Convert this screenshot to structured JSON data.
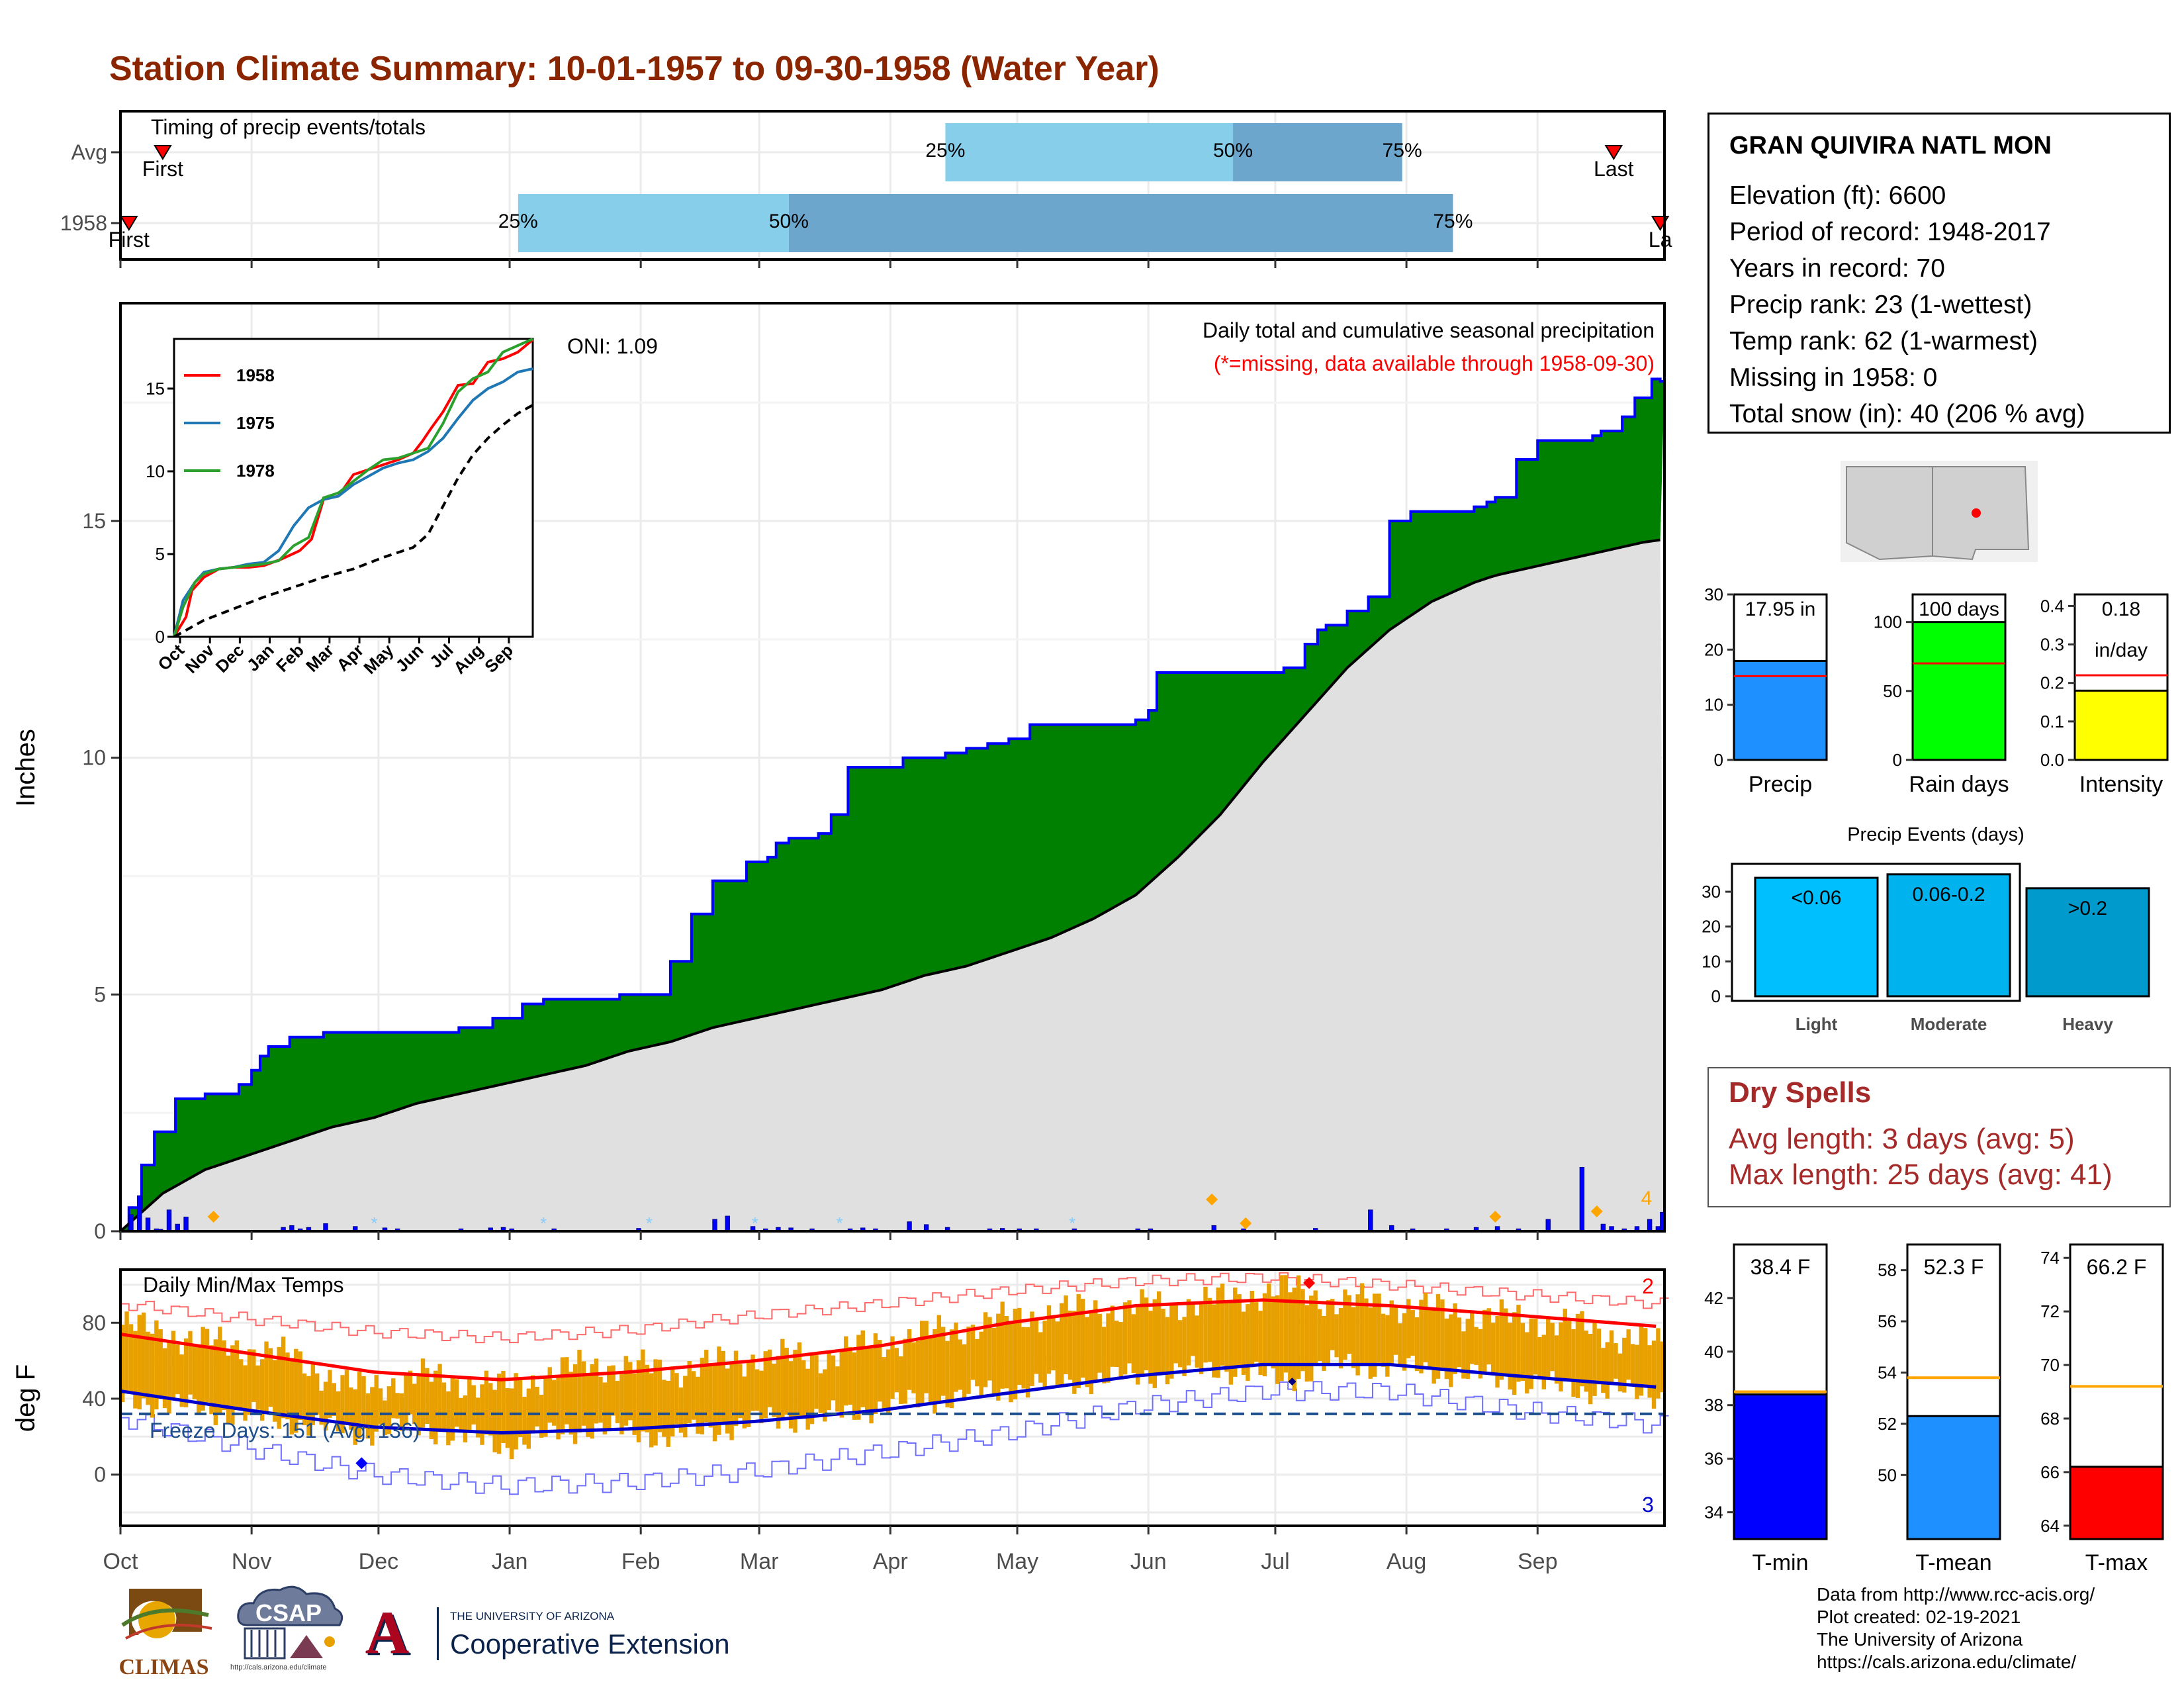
{
  "page": {
    "title": "Station Climate Summary: 10-01-1957 to 09-30-1958 (Water Year)"
  },
  "timing": {
    "title": "Timing of precip events/totals",
    "rows": [
      {
        "label": "Avg",
        "first_label": "First",
        "last_label": "Last"
      },
      {
        "label": "1958",
        "first_label": "First",
        "last_label": "La"
      }
    ],
    "colors": {
      "light": "#87ceeb",
      "dark": "#6ca6cd",
      "marker": "#ff0000"
    }
  },
  "precip_panel": {
    "subtitle": "Daily total and cumulative seasonal precipitation",
    "missing_note": "(*=missing, data available through 1958-09-30)",
    "oni": "ONI: 1.09",
    "ylabel": "Inches",
    "corner_count": "4",
    "colors": {
      "surplus": "#008000",
      "normal": "#e0e0e0",
      "daily": "#0000ff",
      "snow": "#87cefa",
      "marker": "#ffa500"
    }
  },
  "temp_panel": {
    "title": "Daily Min/Max Temps",
    "freeze_text": "Freeze Days: 151 (Avg: 136)",
    "ylabel": "deg F",
    "count_high": "2",
    "count_low": "3",
    "colors": {
      "bar": "#e8a000",
      "max": "#ff0000",
      "min": "#0000cd",
      "freeze": "#1f4e8c"
    }
  },
  "months": [
    "Oct",
    "Nov",
    "Dec",
    "Jan",
    "Feb",
    "Mar",
    "Apr",
    "May",
    "Jun",
    "Jul",
    "Aug",
    "Sep"
  ],
  "station": {
    "name": "GRAN QUIVIRA NATL MON",
    "lines": [
      "Elevation (ft): 6600",
      "Period of record: 1948-2017",
      "Years in record: 70",
      "Precip rank: 23 (1-wettest)",
      "Temp rank: 62 (1-warmest)",
      "Missing in 1958: 0",
      "Total snow (in): 40 (206 % avg)"
    ]
  },
  "summary_bars": [
    {
      "label": "Precip",
      "value_text": "17.95 in",
      "value": 17.95,
      "avg": 15.2,
      "ymax": 30,
      "ticks": [
        0,
        10,
        20,
        30
      ],
      "color": "#1e90ff"
    },
    {
      "label": "Rain days",
      "value_text": "100 days",
      "value": 100,
      "avg": 70,
      "ymax": 120,
      "ticks": [
        0,
        50,
        100
      ],
      "color": "#00ff00"
    },
    {
      "label": "Intensity",
      "value_text": "0.18",
      "value_text2": "in/day",
      "value": 0.18,
      "avg": 0.22,
      "ymax": 0.43,
      "ticks": [
        0.0,
        0.1,
        0.2,
        0.3,
        0.4
      ],
      "color": "#ffff00"
    }
  ],
  "precip_events": {
    "title": "Precip Events (days)",
    "categories": [
      "Light",
      "Moderate",
      "Heavy"
    ],
    "bar_labels": [
      "<0.06",
      "0.06-0.2",
      ">0.2"
    ],
    "values": [
      34,
      35,
      31
    ],
    "ticks": [
      0,
      10,
      20,
      30
    ],
    "colors": [
      "#00bfff",
      "#00b2ee",
      "#009acd"
    ]
  },
  "dry_spells": {
    "title": "Dry Spells",
    "lines": [
      "Avg length: 3 days (avg: 5)",
      "Max length: 25 days (avg: 41)"
    ]
  },
  "temp_bars": [
    {
      "label": "T-min",
      "value_text": "38.4 F",
      "value": 38.4,
      "avg": 38.5,
      "ymin": 33,
      "ymax": 44,
      "ticks": [
        34,
        36,
        38,
        40,
        42
      ],
      "color": "#0000ff"
    },
    {
      "label": "T-mean",
      "value_text": "52.3 F",
      "value": 52.3,
      "avg": 53.8,
      "ymin": 47.5,
      "ymax": 59,
      "ticks": [
        50,
        52,
        54,
        56,
        58
      ],
      "color": "#1e90ff"
    },
    {
      "label": "T-max",
      "value_text": "66.2 F",
      "value": 66.2,
      "avg": 69.2,
      "ymin": 63.5,
      "ymax": 74.5,
      "ticks": [
        64,
        66,
        68,
        70,
        72,
        74
      ],
      "color": "#ff0000"
    }
  ],
  "credits": [
    "Data from http://www.rcc-acis.org/",
    "Plot created: 02-19-2021",
    "The University of Arizona",
    "https://cals.arizona.edu/climate/"
  ],
  "logos": {
    "climas": "CLIMAS",
    "csap": "CSAP",
    "csap_url": "http://cals.arizona.edu/climate",
    "ua_mark": "A",
    "ua_small": "THE UNIVERSITY OF ARIZONA",
    "ua_large": "Cooperative Extension"
  },
  "chart_data": [
    {
      "type": "bar",
      "name": "timing",
      "categories": [
        "Avg",
        "1958"
      ],
      "series": [
        {
          "row": "Avg",
          "first": "Oct 11",
          "p25": "Apr 14",
          "p50": "Jun 21",
          "p75": "Jul 31",
          "last": "Sep 19"
        },
        {
          "row": "1958",
          "first": "Oct 3",
          "p25": "Jan 3",
          "p50": "Mar 8",
          "p75": "Aug 12",
          "last": "Sep 30"
        }
      ]
    },
    {
      "type": "area",
      "name": "cumulative precipitation",
      "title": "Daily total and cumulative seasonal precipitation",
      "ylabel": "Inches",
      "x_unit": "day of water year (0 = Oct 1)",
      "ylim": [
        0,
        19.6
      ],
      "yticks": [
        0,
        5,
        10,
        15
      ],
      "series": [
        {
          "name": "1958 cumulative",
          "x": [
            0,
            2,
            5,
            8,
            13,
            20,
            28,
            31,
            33,
            35,
            40,
            48,
            55,
            68,
            80,
            88,
            95,
            100,
            105,
            110,
            118,
            130,
            135,
            140,
            148,
            152,
            153,
            155,
            158,
            160,
            165,
            168,
            172,
            180,
            185,
            195,
            200,
            205,
            210,
            215,
            230,
            240,
            243,
            245,
            250,
            265,
            275,
            280,
            283,
            285,
            290,
            295,
            300,
            305,
            310,
            315,
            320,
            323,
            325,
            330,
            335,
            340,
            345,
            348,
            350,
            355,
            358,
            362,
            364
          ],
          "y": [
            0,
            0.5,
            1.4,
            2.1,
            2.8,
            2.9,
            3.1,
            3.4,
            3.7,
            3.9,
            4.1,
            4.2,
            4.2,
            4.2,
            4.3,
            4.5,
            4.8,
            4.9,
            4.9,
            4.9,
            5.0,
            5.7,
            6.7,
            7.4,
            7.8,
            7.8,
            7.9,
            8.2,
            8.3,
            8.3,
            8.4,
            8.8,
            9.8,
            9.8,
            10.0,
            10.1,
            10.2,
            10.3,
            10.4,
            10.7,
            10.7,
            10.8,
            11.0,
            11.8,
            11.8,
            11.8,
            11.9,
            12.4,
            12.7,
            12.8,
            13.1,
            13.4,
            15.0,
            15.2,
            15.2,
            15.2,
            15.3,
            15.4,
            15.5,
            16.3,
            16.7,
            16.7,
            16.7,
            16.8,
            16.9,
            17.2,
            17.6,
            18.0,
            17.95
          ]
        },
        {
          "name": "average cumulative",
          "x": [
            0,
            10,
            20,
            30,
            40,
            50,
            60,
            70,
            80,
            90,
            100,
            110,
            120,
            130,
            140,
            150,
            160,
            170,
            180,
            190,
            200,
            210,
            220,
            230,
            240,
            250,
            260,
            270,
            275,
            280,
            285,
            290,
            295,
            300,
            305,
            310,
            315,
            320,
            325,
            330,
            335,
            340,
            345,
            350,
            355,
            360,
            364
          ],
          "y": [
            0,
            0.8,
            1.3,
            1.6,
            1.9,
            2.2,
            2.4,
            2.7,
            2.9,
            3.1,
            3.3,
            3.5,
            3.8,
            4.0,
            4.3,
            4.5,
            4.7,
            4.9,
            5.1,
            5.4,
            5.6,
            5.9,
            6.2,
            6.6,
            7.1,
            7.9,
            8.8,
            9.9,
            10.4,
            10.9,
            11.4,
            11.9,
            12.3,
            12.7,
            13.0,
            13.3,
            13.5,
            13.7,
            13.85,
            13.95,
            14.05,
            14.15,
            14.25,
            14.35,
            14.45,
            14.55,
            14.6
          ]
        }
      ]
    },
    {
      "type": "inset-line",
      "name": "analog years",
      "legend": [
        "1958",
        "1975",
        "1978"
      ],
      "colors": [
        "#ff0000",
        "#1f77b4",
        "#2ca02c"
      ],
      "months": [
        "Oct",
        "Nov",
        "Dec",
        "Jan",
        "Feb",
        "Mar",
        "Apr",
        "May",
        "Jun",
        "Jul",
        "Aug",
        "Sep"
      ],
      "yticks": [
        0,
        5,
        10,
        15
      ],
      "ylim": [
        0,
        18
      ],
      "series": [
        {
          "name": "1958",
          "x": [
            0,
            0.4,
            0.6,
            1,
            1.5,
            2,
            2.5,
            3,
            3.6,
            4.2,
            4.6,
            5,
            5.5,
            6,
            6.5,
            7,
            7.5,
            8,
            8.3,
            8.6,
            9,
            9.5,
            10,
            10.5,
            11,
            11.5,
            12
          ],
          "y": [
            0,
            1.2,
            2.8,
            3.6,
            4.1,
            4.2,
            4.2,
            4.3,
            4.7,
            5.2,
            5.9,
            8.3,
            8.5,
            9.8,
            10.1,
            10.4,
            10.7,
            11.1,
            11.8,
            12.6,
            13.6,
            15.2,
            15.3,
            16.6,
            16.8,
            17.2,
            17.95
          ]
        },
        {
          "name": "1975",
          "x": [
            0,
            0.3,
            0.7,
            1,
            1.5,
            2,
            2.5,
            3,
            3.5,
            4,
            4.5,
            5,
            5.5,
            6,
            6.5,
            7,
            7.5,
            8,
            8.5,
            9,
            9.5,
            10,
            10.5,
            11,
            11.5,
            12
          ],
          "y": [
            0,
            2.2,
            3.3,
            3.9,
            4.1,
            4.2,
            4.4,
            4.5,
            5.2,
            6.7,
            7.8,
            8.3,
            8.5,
            9.2,
            9.7,
            10.2,
            10.5,
            10.7,
            11.2,
            12.0,
            13.2,
            14.3,
            15.0,
            15.4,
            16.0,
            16.2
          ]
        },
        {
          "name": "1978",
          "x": [
            0,
            0.3,
            0.7,
            1,
            1.5,
            2,
            2.5,
            3,
            3.5,
            4,
            4.5,
            5,
            5.5,
            6,
            6.5,
            7,
            7.5,
            8,
            8.5,
            9,
            9.5,
            10,
            10.5,
            11,
            11.5,
            12
          ],
          "y": [
            0,
            1.8,
            3.3,
            3.8,
            4.1,
            4.2,
            4.3,
            4.4,
            4.6,
            5.5,
            6.0,
            8.4,
            8.7,
            9.4,
            10.1,
            10.7,
            10.8,
            11.1,
            11.4,
            12.9,
            14.8,
            15.6,
            16.0,
            17.2,
            17.6,
            18.0
          ]
        },
        {
          "name": "average",
          "x": [
            0,
            1,
            2,
            3,
            4,
            5,
            6,
            7,
            8,
            8.5,
            9,
            9.5,
            10,
            10.5,
            11,
            11.5,
            12
          ],
          "y": [
            0,
            1.0,
            1.7,
            2.4,
            3.0,
            3.6,
            4.1,
            4.8,
            5.4,
            6.2,
            7.9,
            9.6,
            11.0,
            12.0,
            12.8,
            13.5,
            14.0
          ]
        }
      ]
    },
    {
      "type": "bar",
      "name": "daily precipitation",
      "x_unit": "day of water year",
      "x": [
        2,
        4,
        6,
        8,
        9,
        11,
        13,
        15,
        38,
        40,
        42,
        44,
        48,
        55,
        62,
        65,
        80,
        87,
        90,
        92,
        102,
        122,
        140,
        143,
        149,
        152,
        155,
        158,
        163,
        172,
        175,
        178,
        186,
        190,
        195,
        205,
        208,
        212,
        216,
        225,
        240,
        243,
        258,
        265,
        282,
        295,
        300,
        305,
        313,
        320,
        325,
        330,
        337,
        345,
        350,
        352,
        355,
        358,
        361,
        363,
        364
      ],
      "y": [
        0.35,
        0.75,
        0.28,
        0.05,
        0.04,
        0.45,
        0.15,
        0.3,
        0.08,
        0.12,
        0.05,
        0.08,
        0.16,
        0.1,
        0.07,
        0.05,
        0.05,
        0.07,
        0.08,
        0.05,
        0.05,
        0.06,
        0.25,
        0.32,
        0.1,
        0.05,
        0.08,
        0.07,
        0.05,
        0.05,
        0.07,
        0.05,
        0.2,
        0.14,
        0.08,
        0.05,
        0.06,
        0.05,
        0.05,
        0.05,
        0.05,
        0.05,
        0.12,
        0.05,
        0.06,
        0.45,
        0.12,
        0.05,
        0.05,
        0.08,
        0.1,
        0.05,
        0.25,
        1.35,
        0.15,
        0.1,
        0.05,
        0.1,
        0.25,
        0.1,
        0.4
      ]
    },
    {
      "type": "line",
      "name": "temperatures",
      "title": "Daily Min/Max Temps",
      "ylabel": "deg F",
      "ylim": [
        -27,
        108
      ],
      "yticks": [
        0,
        40,
        80
      ],
      "freeze_line": 32,
      "series": [
        {
          "name": "avg max",
          "x": [
            0,
            30,
            60,
            90,
            120,
            150,
            180,
            210,
            240,
            270,
            300,
            330,
            364
          ],
          "y": [
            74,
            64,
            54,
            50,
            54,
            60,
            68,
            80,
            89,
            92,
            89,
            84,
            78
          ]
        },
        {
          "name": "avg min",
          "x": [
            0,
            30,
            60,
            90,
            120,
            150,
            180,
            210,
            240,
            270,
            300,
            330,
            364
          ],
          "y": [
            44,
            34,
            25,
            22,
            24,
            28,
            34,
            43,
            52,
            58,
            58,
            52,
            46
          ]
        },
        {
          "name": "record max",
          "x": [
            0,
            30,
            60,
            90,
            120,
            150,
            180,
            210,
            240,
            270,
            300,
            330,
            364
          ],
          "y": [
            90,
            82,
            75,
            72,
            76,
            84,
            90,
            97,
            102,
            104,
            100,
            95,
            90
          ]
        },
        {
          "name": "record min",
          "x": [
            0,
            30,
            60,
            90,
            120,
            150,
            180,
            210,
            240,
            270,
            300,
            330,
            364
          ],
          "y": [
            30,
            14,
            0,
            -6,
            -4,
            2,
            12,
            22,
            36,
            44,
            44,
            34,
            26
          ]
        },
        {
          "name": "1958 max",
          "x": [
            0,
            20,
            40,
            55,
            70,
            90,
            110,
            130,
            150,
            165,
            180,
            200,
            220,
            240,
            260,
            275,
            285,
            300,
            320,
            340,
            364
          ],
          "y": [
            79,
            70,
            62,
            45,
            52,
            46,
            58,
            55,
            62,
            62,
            70,
            78,
            86,
            88,
            92,
            98,
            92,
            90,
            84,
            80,
            68
          ]
        },
        {
          "name": "1958 min",
          "x": [
            0,
            20,
            40,
            55,
            70,
            90,
            110,
            130,
            150,
            165,
            180,
            200,
            220,
            240,
            260,
            275,
            285,
            300,
            320,
            340,
            364
          ],
          "y": [
            40,
            34,
            28,
            22,
            25,
            15,
            25,
            20,
            28,
            30,
            36,
            42,
            48,
            52,
            56,
            50,
            58,
            57,
            52,
            46,
            42
          ]
        }
      ]
    },
    {
      "type": "bar",
      "name": "precip summary",
      "categories": [
        "Precip",
        "Rain days",
        "Intensity"
      ],
      "values": [
        17.95,
        100,
        0.18
      ],
      "averages": [
        15.2,
        70,
        0.22
      ]
    },
    {
      "type": "bar",
      "name": "Precip Events (days)",
      "categories": [
        "Light",
        "Moderate",
        "Heavy"
      ],
      "values": [
        34,
        35,
        31
      ]
    },
    {
      "type": "bar",
      "name": "temperature summary",
      "categories": [
        "T-min",
        "T-mean",
        "T-max"
      ],
      "values": [
        38.4,
        52.3,
        66.2
      ],
      "averages": [
        38.5,
        53.8,
        69.2
      ]
    }
  ]
}
